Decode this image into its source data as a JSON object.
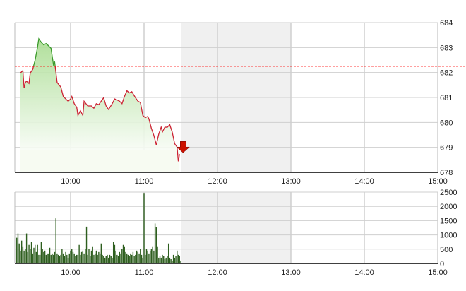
{
  "chart_data": [
    {
      "type": "area",
      "title": "",
      "xlabel": "",
      "ylabel": "",
      "x_ticks": [
        "10:00",
        "11:00",
        "12:00",
        "13:00",
        "14:00",
        "15:00"
      ],
      "y_ticks": [
        "678",
        "679",
        "680",
        "681",
        "682",
        "683",
        "684"
      ],
      "ylim": [
        678,
        684
      ],
      "xlim": [
        "9:15",
        "15:00"
      ],
      "reference_line": 682.25,
      "reference_color": "#ff0000",
      "shaded_region": [
        "11:30",
        "13:00"
      ],
      "grid": true,
      "colors": {
        "above_reference": "#3a9a2a",
        "below_reference": "#cc2233",
        "fill": "#a8dc90",
        "marker": "#cc1100"
      },
      "x": [
        "9:19",
        "9:21",
        "9:22",
        "9:23",
        "9:24",
        "9:26",
        "9:27",
        "9:29",
        "9:31",
        "9:33",
        "9:34",
        "9:36",
        "9:38",
        "9:40",
        "9:42",
        "9:44",
        "9:46",
        "9:47",
        "9:49",
        "9:52",
        "9:54",
        "9:58",
        "10:00",
        "10:01",
        "10:03",
        "10:05",
        "10:06",
        "10:08",
        "10:10",
        "10:11",
        "10:14",
        "10:17",
        "10:19",
        "10:21",
        "10:23",
        "10:25",
        "10:27",
        "10:29",
        "10:31",
        "10:34",
        "10:36",
        "10:38",
        "10:40",
        "10:42",
        "10:44",
        "10:46",
        "10:48",
        "10:50",
        "10:53",
        "10:55",
        "10:57",
        "10:59",
        "11:01",
        "11:03",
        "11:04",
        "11:06",
        "11:08",
        "11:10",
        "11:12",
        "11:14",
        "11:15",
        "11:17",
        "11:19",
        "11:21",
        "11:23",
        "11:25",
        "11:27",
        "11:28",
        "11:29"
      ],
      "values": [
        681.98,
        682.08,
        681.37,
        681.6,
        681.65,
        681.56,
        681.98,
        682.12,
        682.5,
        683.02,
        683.35,
        683.21,
        683.11,
        683.16,
        683.07,
        682.97,
        682.31,
        682.41,
        681.6,
        681.42,
        681.04,
        680.85,
        680.94,
        681.04,
        680.75,
        680.61,
        680.28,
        680.47,
        680.28,
        680.85,
        680.66,
        680.66,
        680.57,
        680.75,
        680.71,
        680.85,
        680.99,
        680.66,
        680.52,
        680.75,
        680.94,
        680.9,
        680.85,
        680.75,
        681.04,
        681.27,
        681.18,
        681.23,
        680.99,
        680.85,
        680.8,
        680.28,
        680.19,
        680.24,
        680.14,
        679.76,
        679.48,
        679.1,
        679.53,
        679.81,
        679.62,
        679.81,
        679.81,
        679.91,
        679.62,
        679.15,
        679.01,
        678.44,
        678.73
      ]
    },
    {
      "type": "bar",
      "title": "",
      "xlabel": "",
      "ylabel": "",
      "x_ticks": [
        "10:00",
        "11:00",
        "12:00",
        "13:00",
        "14:00",
        "15:00"
      ],
      "y_ticks": [
        "0",
        "500",
        "1000",
        "1500",
        "2000",
        "2500"
      ],
      "ylim": [
        0,
        2500
      ],
      "start_time": "9:16",
      "interval_minutes": 1,
      "color": "#2d5e1e",
      "values": [
        900,
        1050,
        700,
        450,
        800,
        600,
        450,
        500,
        1050,
        400,
        650,
        500,
        750,
        350,
        550,
        650,
        400,
        650,
        300,
        300,
        750,
        500,
        400,
        450,
        300,
        350,
        350,
        550,
        300,
        350,
        300,
        400,
        1580,
        350,
        300,
        250,
        300,
        500,
        350,
        250,
        400,
        300,
        200,
        350,
        450,
        500,
        400,
        350,
        250,
        300,
        300,
        650,
        300,
        400,
        450,
        350,
        500,
        1290,
        300,
        500,
        250,
        450,
        600,
        300,
        350,
        450,
        300,
        400,
        350,
        700,
        300,
        250,
        200,
        250,
        300,
        200,
        300,
        250,
        200,
        750,
        650,
        450,
        300,
        250,
        400,
        350,
        500,
        650,
        600,
        400,
        350,
        300,
        250,
        350,
        300,
        400,
        250,
        300,
        450,
        400,
        350,
        500,
        300,
        200,
        2470,
        300,
        500,
        450,
        350,
        450,
        500,
        600,
        450,
        1400,
        1270,
        600,
        200,
        250,
        200,
        300,
        250,
        150,
        200,
        250,
        700,
        200,
        150,
        100,
        300,
        200,
        250,
        450,
        300,
        250,
        100
      ]
    }
  ]
}
